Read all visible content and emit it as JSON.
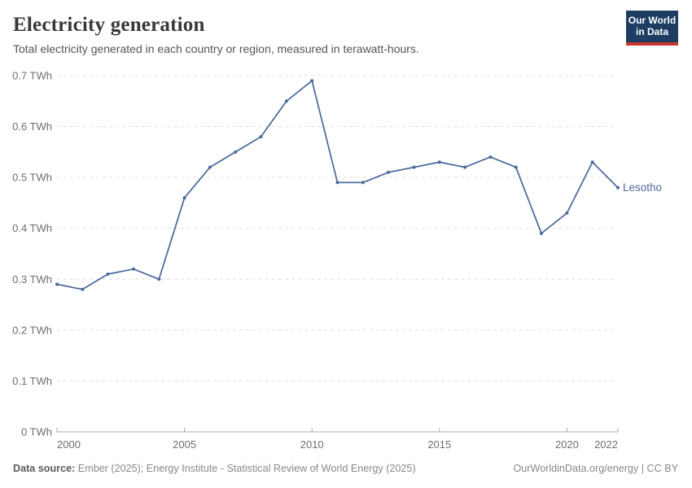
{
  "header": {
    "title": "Electricity generation",
    "subtitle": "Total electricity generated in each country or region, measured in terawatt-hours.",
    "logo": {
      "line1": "Our World",
      "line2": "in Data"
    }
  },
  "footer": {
    "source_label": "Data source:",
    "source_text": "Ember (2025); Energy Institute - Statistical Review of World Energy (2025)",
    "credit": "OurWorldinData.org/energy | CC BY"
  },
  "colors": {
    "series": "#4c6a9c",
    "logo_bg": "#1d3d63",
    "logo_stripe": "#c9342f",
    "grid": "#dddddd",
    "axis": "#a9a9a9",
    "tick_text": "#6e6e6e"
  },
  "chart_data": {
    "type": "line",
    "title": "Electricity generation",
    "subtitle": "Total electricity generated in each country or region, measured in terawatt-hours.",
    "unit": "TWh",
    "xlim": [
      2000,
      2022
    ],
    "ylim": [
      0,
      0.7
    ],
    "x_ticks": [
      2000,
      2005,
      2010,
      2015,
      2020,
      2022
    ],
    "y_ticks": [
      0,
      0.1,
      0.2,
      0.3,
      0.4,
      0.5,
      0.6,
      0.7
    ],
    "y_tick_suffix": " TWh",
    "grid": "horizontal-dashed",
    "legend_position": "end-of-line-label",
    "series": [
      {
        "name": "Lesotho",
        "color": "#4c6a9c",
        "x": [
          2000,
          2001,
          2002,
          2003,
          2004,
          2005,
          2006,
          2007,
          2008,
          2009,
          2010,
          2011,
          2012,
          2013,
          2014,
          2015,
          2016,
          2017,
          2018,
          2019,
          2020,
          2021,
          2022
        ],
        "values": [
          0.29,
          0.28,
          0.31,
          0.32,
          0.3,
          0.46,
          0.52,
          0.55,
          0.58,
          0.65,
          0.69,
          0.49,
          0.49,
          0.51,
          0.52,
          0.53,
          0.52,
          0.54,
          0.52,
          0.39,
          0.43,
          0.53,
          0.48
        ]
      }
    ]
  }
}
